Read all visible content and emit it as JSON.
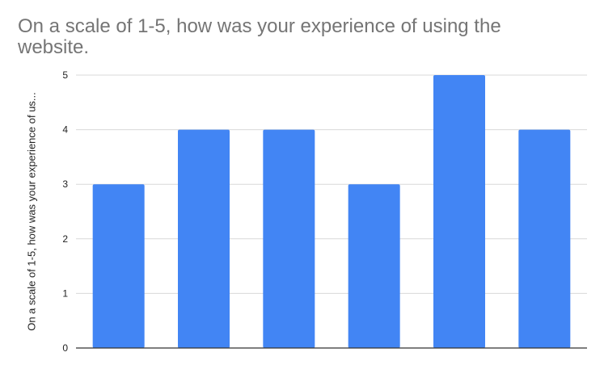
{
  "chart_data": {
    "type": "bar",
    "title": "On a scale of 1-5, how was your experience of using the website.",
    "xlabel": "",
    "ylabel": "On a scale of 1-5, how was your experience of us...",
    "categories": [
      "",
      "",
      "",
      "",
      "",
      ""
    ],
    "values": [
      3,
      4,
      4,
      3,
      5,
      4
    ],
    "ylim": [
      0,
      5
    ],
    "yticks": [
      "0",
      "1",
      "2",
      "3",
      "4",
      "5"
    ],
    "grid": true,
    "legend": "none",
    "bar_color": "#4285f4",
    "gridline_color": "#d9d9d9",
    "axis_color": "#333333"
  }
}
